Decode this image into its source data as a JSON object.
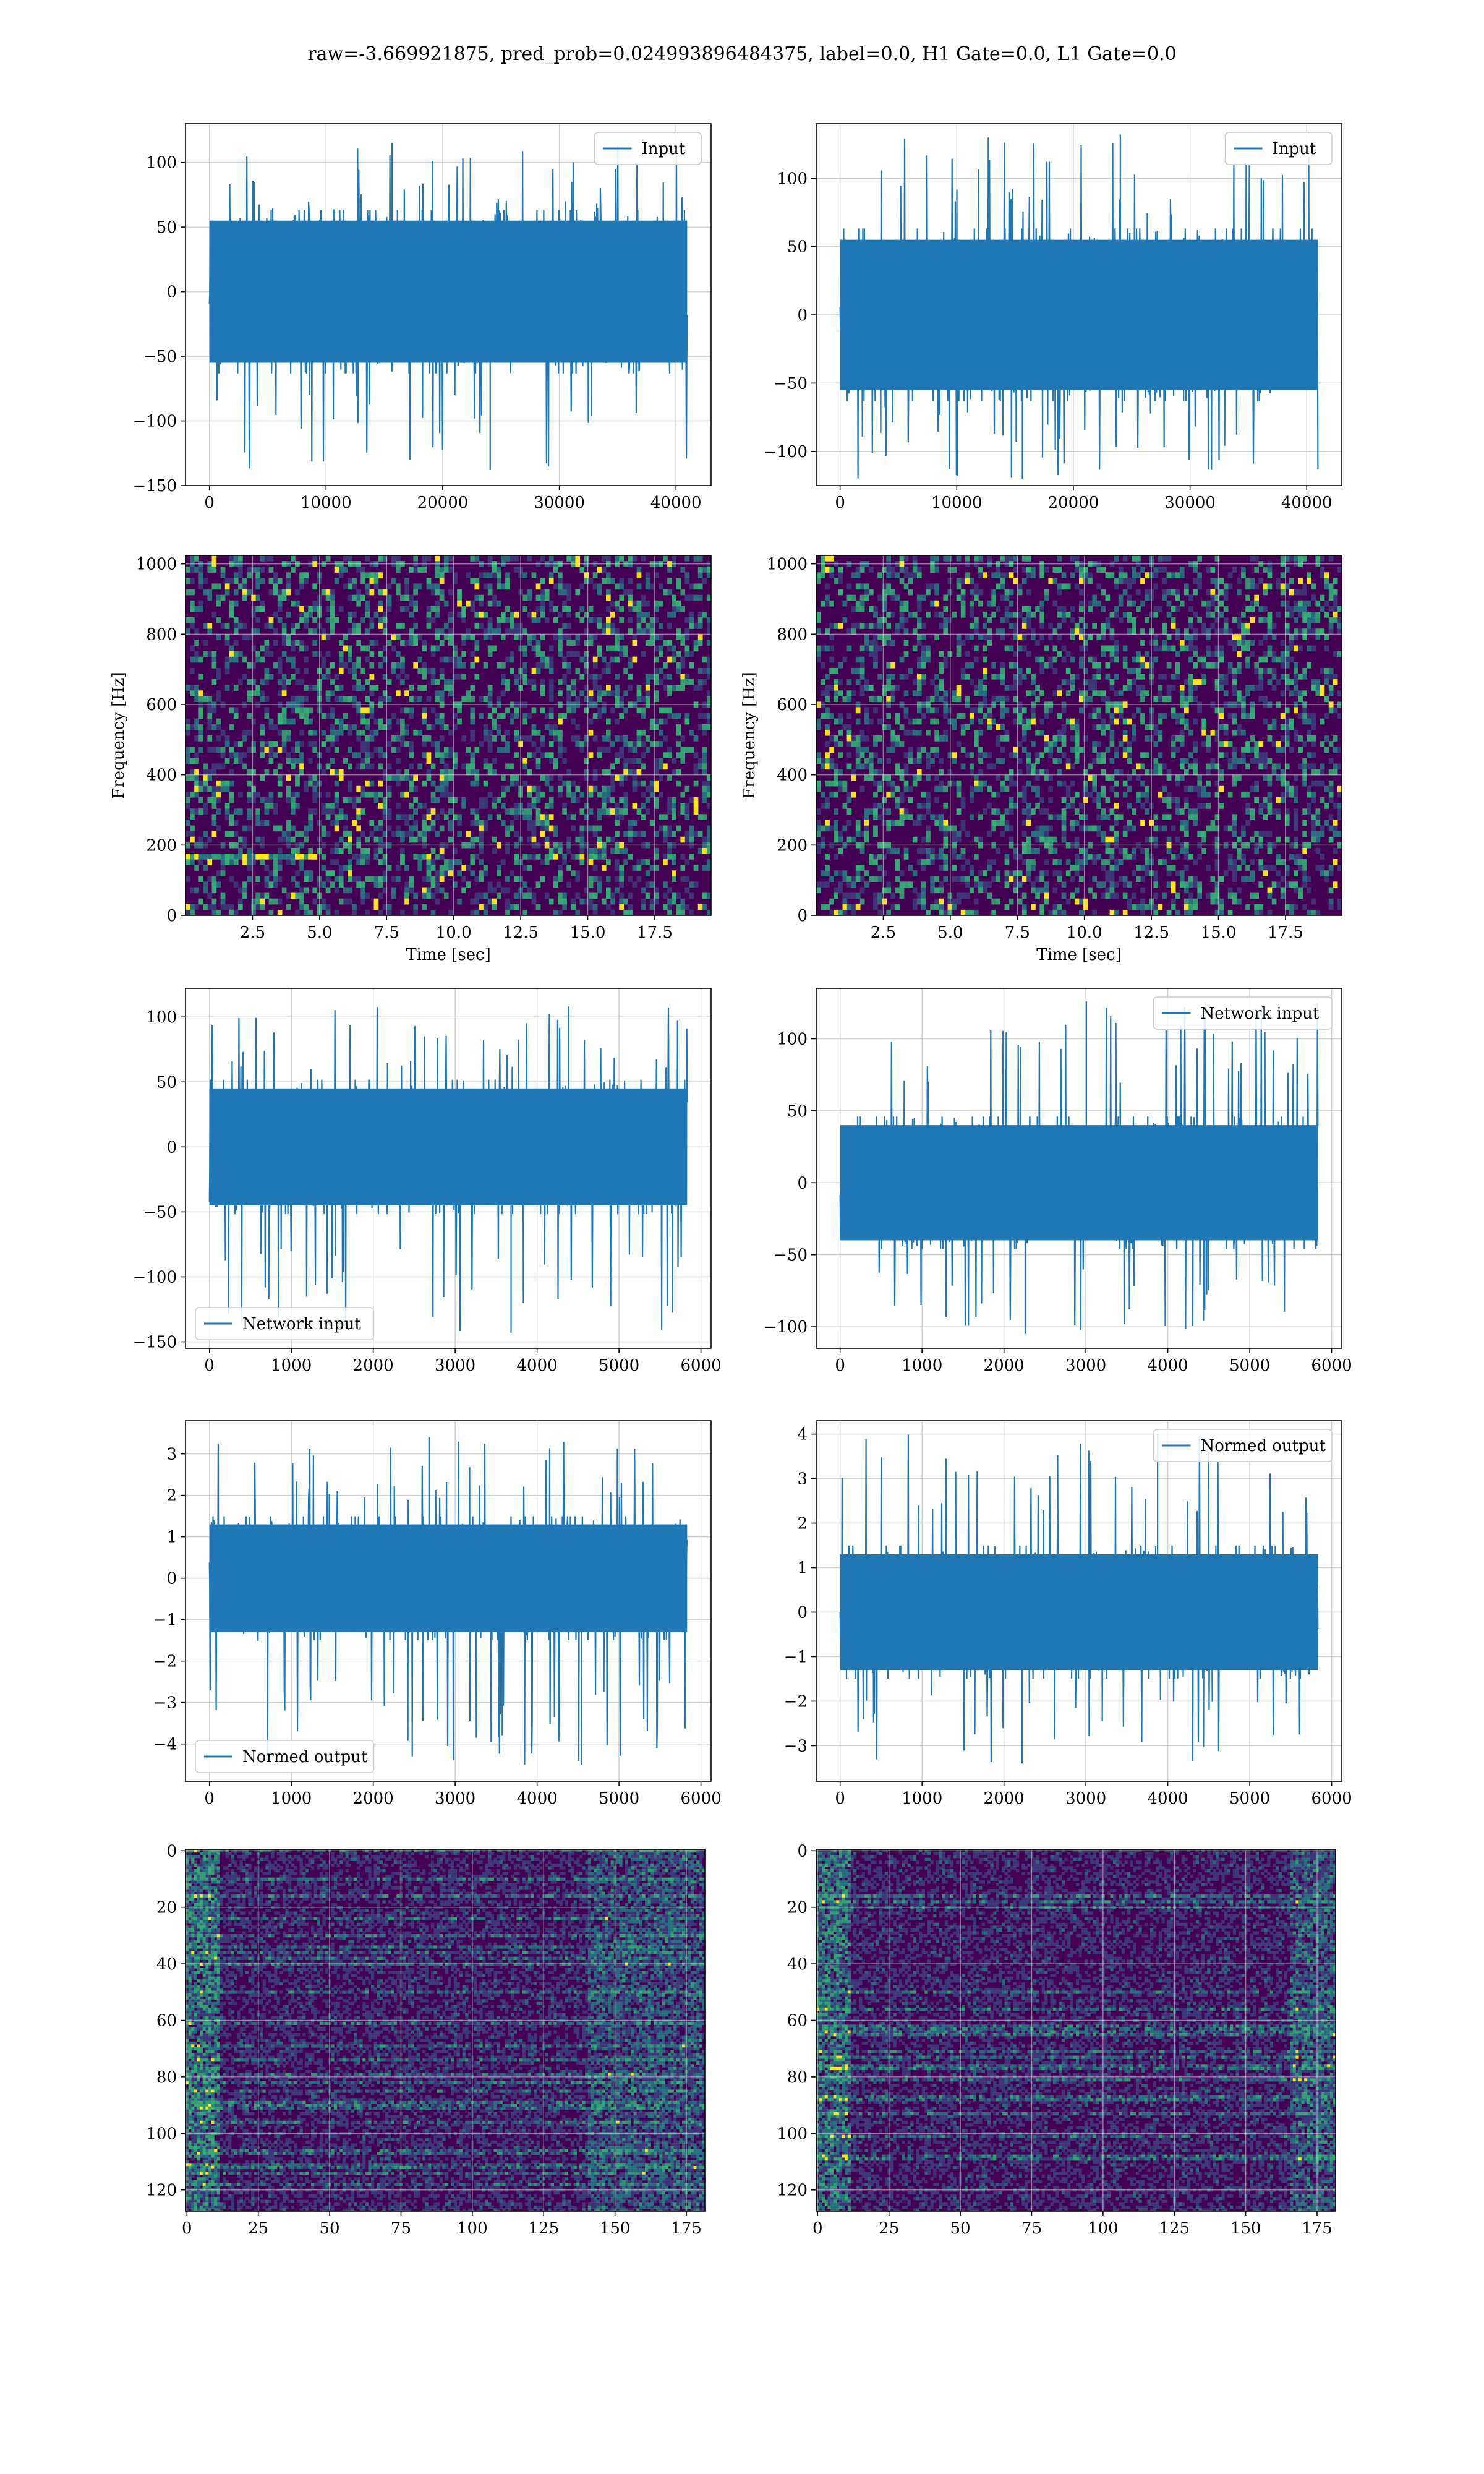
{
  "figure": {
    "title": "raw=-3.669921875, pred_prob=0.024993896484375, label=0.0, H1 Gate=0.0, L1 Gate=0.0"
  },
  "colors": {
    "line": "#1f77b4",
    "grid": "#b0b0b0",
    "viridis_low": "#440154",
    "viridis_mid": "#21918c",
    "viridis_high": "#fde725"
  },
  "chart_data": [
    {
      "type": "line",
      "id": "input-h1",
      "series": [
        {
          "name": "Input",
          "n": 40960,
          "amp_band": 55,
          "peak_min": -138,
          "peak_max": 115
        }
      ],
      "xlim": [
        -2048,
        43008
      ],
      "ylim": [
        -150,
        130
      ],
      "xticks": [
        0,
        10000,
        20000,
        30000,
        40000
      ],
      "yticks": [
        -150,
        -100,
        -50,
        0,
        50,
        100
      ],
      "grid": true,
      "legend": "top-right",
      "xlabel": "",
      "ylabel": ""
    },
    {
      "type": "line",
      "id": "input-l1",
      "series": [
        {
          "name": "Input",
          "n": 40960,
          "amp_band": 55,
          "peak_min": -120,
          "peak_max": 132
        }
      ],
      "xlim": [
        -2048,
        43008
      ],
      "ylim": [
        -125,
        140
      ],
      "xticks": [
        0,
        10000,
        20000,
        30000,
        40000
      ],
      "yticks": [
        -100,
        -50,
        0,
        50,
        100
      ],
      "grid": true,
      "legend": "top-right",
      "xlabel": "",
      "ylabel": ""
    },
    {
      "type": "heatmap",
      "id": "spectrogram-h1",
      "colormap": "viridis",
      "xlim": [
        0,
        19.6
      ],
      "ylim": [
        0,
        1024
      ],
      "xticks": [
        2.5,
        5.0,
        7.5,
        10.0,
        12.5,
        15.0,
        17.5
      ],
      "yticks": [
        0,
        200,
        400,
        600,
        800,
        1000
      ],
      "grid": true,
      "xlabel": "Time [sec]",
      "ylabel": "Frequency [Hz]"
    },
    {
      "type": "heatmap",
      "id": "spectrogram-l1",
      "colormap": "viridis",
      "xlim": [
        0,
        19.6
      ],
      "ylim": [
        0,
        1024
      ],
      "xticks": [
        2.5,
        5.0,
        7.5,
        10.0,
        12.5,
        15.0,
        17.5
      ],
      "yticks": [
        0,
        200,
        400,
        600,
        800,
        1000
      ],
      "grid": true,
      "xlabel": "Time [sec]",
      "ylabel": "Frequency [Hz]"
    },
    {
      "type": "line",
      "id": "network-input-h1",
      "series": [
        {
          "name": "Network input",
          "n": 5832,
          "amp_band": 45,
          "peak_min": -143,
          "peak_max": 108
        }
      ],
      "xlim": [
        -292,
        6124
      ],
      "ylim": [
        -155,
        122
      ],
      "xticks": [
        0,
        1000,
        2000,
        3000,
        4000,
        5000,
        6000
      ],
      "yticks": [
        -150,
        -100,
        -50,
        0,
        50,
        100
      ],
      "grid": true,
      "legend": "lower-left",
      "xlabel": "",
      "ylabel": ""
    },
    {
      "type": "line",
      "id": "network-input-l1",
      "series": [
        {
          "name": "Network input",
          "n": 5832,
          "amp_band": 40,
          "peak_min": -105,
          "peak_max": 126
        }
      ],
      "xlim": [
        -292,
        6124
      ],
      "ylim": [
        -115,
        135
      ],
      "xticks": [
        0,
        1000,
        2000,
        3000,
        4000,
        5000,
        6000
      ],
      "yticks": [
        -100,
        -50,
        0,
        50,
        100
      ],
      "grid": true,
      "legend": "top-right",
      "xlabel": "",
      "ylabel": ""
    },
    {
      "type": "line",
      "id": "normed-output-h1",
      "series": [
        {
          "name": "Normed output",
          "n": 5832,
          "amp_band": 1.3,
          "peak_min": -4.5,
          "peak_max": 3.4
        }
      ],
      "xlim": [
        -292,
        6124
      ],
      "ylim": [
        -4.9,
        3.8
      ],
      "xticks": [
        0,
        1000,
        2000,
        3000,
        4000,
        5000,
        6000
      ],
      "yticks": [
        -4,
        -3,
        -2,
        -1,
        0,
        1,
        2,
        3
      ],
      "grid": true,
      "legend": "lower-left",
      "xlabel": "",
      "ylabel": ""
    },
    {
      "type": "line",
      "id": "normed-output-l1",
      "series": [
        {
          "name": "Normed output",
          "n": 5832,
          "amp_band": 1.3,
          "peak_min": -3.4,
          "peak_max": 4.0
        }
      ],
      "xlim": [
        -292,
        6124
      ],
      "ylim": [
        -3.8,
        4.3
      ],
      "xticks": [
        0,
        1000,
        2000,
        3000,
        4000,
        5000,
        6000
      ],
      "yticks": [
        -3,
        -2,
        -1,
        0,
        1,
        2,
        3,
        4
      ],
      "grid": true,
      "legend": "top-right",
      "xlabel": "",
      "ylabel": ""
    },
    {
      "type": "heatmap",
      "id": "features-h1",
      "colormap": "viridis",
      "xlim": [
        -0.5,
        181.5
      ],
      "ylim": [
        127.5,
        -0.5
      ],
      "xticks": [
        0,
        25,
        50,
        75,
        100,
        125,
        150,
        175
      ],
      "yticks": [
        0,
        20,
        40,
        60,
        80,
        100,
        120
      ],
      "grid": true,
      "xlabel": "",
      "ylabel": ""
    },
    {
      "type": "heatmap",
      "id": "features-l1",
      "colormap": "viridis",
      "xlim": [
        -0.5,
        181.5
      ],
      "ylim": [
        127.5,
        -0.5
      ],
      "xticks": [
        0,
        25,
        50,
        75,
        100,
        125,
        150,
        175
      ],
      "yticks": [
        0,
        20,
        40,
        60,
        80,
        100,
        120
      ],
      "grid": true,
      "xlabel": "",
      "ylabel": ""
    }
  ]
}
